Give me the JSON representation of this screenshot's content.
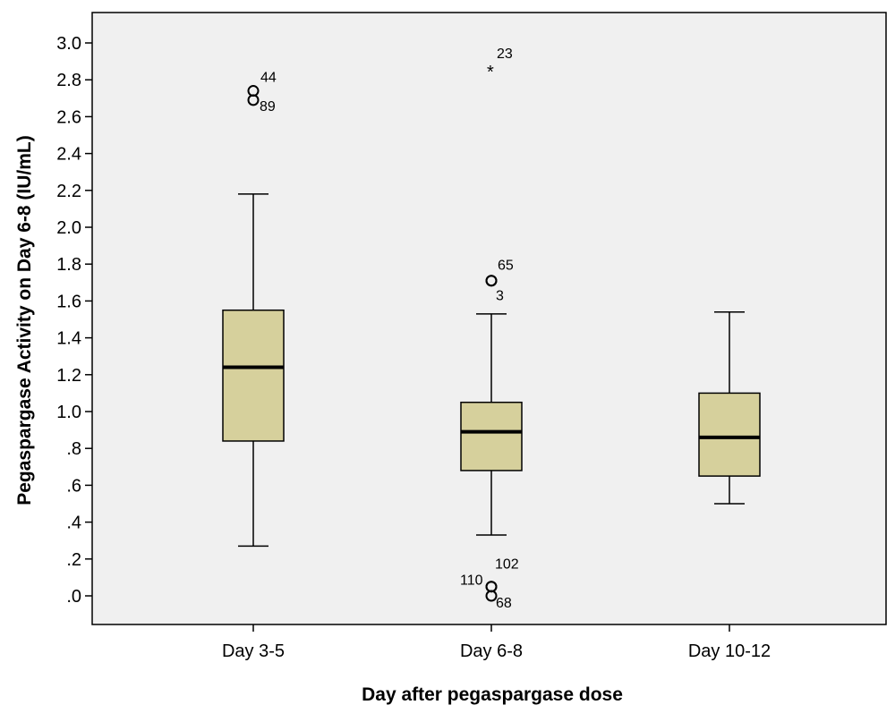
{
  "chart_data": {
    "type": "box",
    "xlabel": "Day after pegaspargase dose",
    "ylabel": "Pegaspargase Activity on Day 6-8 (IU/mL)",
    "ylim": [
      -0.15,
      3.17
    ],
    "yticks": [
      0.0,
      0.2,
      0.4,
      0.6,
      0.8,
      1.0,
      1.2,
      1.4,
      1.6,
      1.8,
      2.0,
      2.2,
      2.4,
      2.6,
      2.8,
      3.0
    ],
    "ytick_labels": [
      ".0",
      ".2",
      ".4",
      ".6",
      ".8",
      "1.0",
      "1.2",
      "1.4",
      "1.6",
      "1.8",
      "2.0",
      "2.2",
      "2.4",
      "2.6",
      "2.8",
      "3.0"
    ],
    "grid": false,
    "categories": [
      "Day 3-5",
      "Day 6-8",
      "Day 10-12"
    ],
    "boxes": [
      {
        "category": "Day 3-5",
        "whisker_low": 0.27,
        "q1": 0.84,
        "median": 1.24,
        "q3": 1.55,
        "whisker_high": 2.18,
        "outliers": [
          {
            "value": 2.74,
            "label": "44",
            "marker": "circle"
          },
          {
            "value": 2.69,
            "label": "89",
            "marker": "circle"
          }
        ]
      },
      {
        "category": "Day 6-8",
        "whisker_low": 0.33,
        "q1": 0.68,
        "median": 0.89,
        "q3": 1.05,
        "whisker_high": 1.53,
        "outliers": [
          {
            "value": 2.86,
            "label": "23",
            "marker": "star"
          },
          {
            "value": 1.71,
            "label": "65",
            "marker": "circle"
          },
          {
            "value": 1.71,
            "label": "3",
            "marker": "circle"
          },
          {
            "value": 0.05,
            "label": "102",
            "marker": "circle"
          },
          {
            "value": 0.05,
            "label": "110",
            "marker": "circle"
          },
          {
            "value": 0.0,
            "label": "68",
            "marker": "circle"
          }
        ]
      },
      {
        "category": "Day 10-12",
        "whisker_low": 0.5,
        "q1": 0.65,
        "median": 0.86,
        "q3": 1.1,
        "whisker_high": 1.54,
        "outliers": []
      }
    ],
    "colors": {
      "plot_background": "#f0f0f0",
      "box_fill": "#d6d09c",
      "stroke": "#000000"
    }
  }
}
